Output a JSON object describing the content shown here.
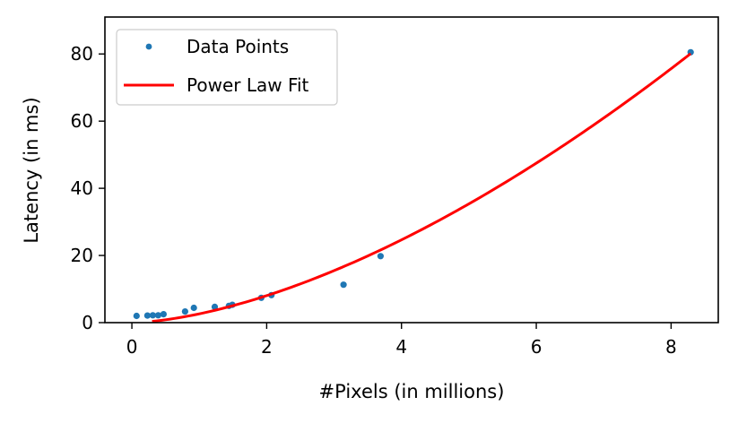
{
  "chart_data": {
    "type": "scatter",
    "xlabel": "#Pixels (in millions)",
    "ylabel": "Latency (in ms)",
    "xlim": [
      -0.4,
      8.7
    ],
    "ylim": [
      0,
      91
    ],
    "x_ticks": [
      0,
      2,
      4,
      6,
      8
    ],
    "y_ticks": [
      0,
      20,
      40,
      60,
      80
    ],
    "grid": false,
    "legend_position": "top-left",
    "series": [
      {
        "name": "Data Points",
        "kind": "scatter",
        "color": "#1f77b4",
        "points": [
          [
            0.07,
            2.0
          ],
          [
            0.23,
            2.1
          ],
          [
            0.31,
            2.2
          ],
          [
            0.39,
            2.2
          ],
          [
            0.47,
            2.5
          ],
          [
            0.79,
            3.3
          ],
          [
            0.92,
            4.4
          ],
          [
            1.23,
            4.7
          ],
          [
            1.44,
            5.0
          ],
          [
            1.49,
            5.3
          ],
          [
            1.92,
            7.4
          ],
          [
            2.07,
            8.2
          ],
          [
            3.14,
            11.3
          ],
          [
            3.69,
            19.8
          ],
          [
            8.29,
            80.5
          ]
        ]
      },
      {
        "name": "Power Law Fit",
        "kind": "line",
        "color": "#ff0000",
        "formula": "y = a * x^b",
        "a": 2.62,
        "b": 1.617,
        "x_range": [
          0.3,
          8.29
        ]
      }
    ]
  }
}
